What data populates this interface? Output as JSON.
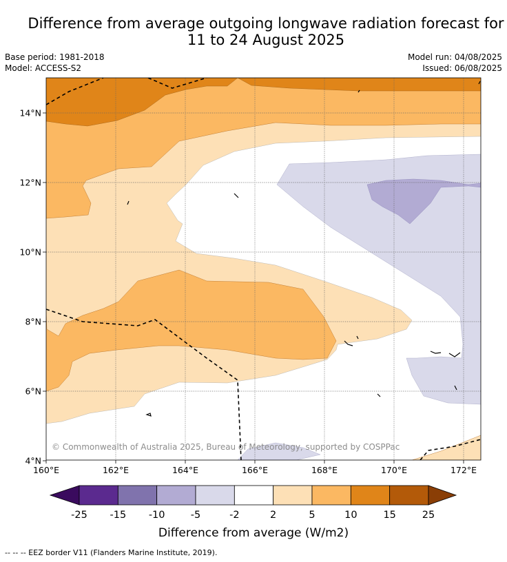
{
  "title": {
    "line1": "Difference from average outgoing longwave radiation forecast for",
    "line2": "11 to 24 August 2025"
  },
  "meta": {
    "base_period": "Base period: 1981-2018",
    "model": "Model: ACCESS-S2",
    "model_run": "Model run: 04/08/2025",
    "issued": "Issued: 06/08/2025"
  },
  "map": {
    "x_ticks": [
      "160°E",
      "162°E",
      "164°E",
      "166°E",
      "168°E",
      "170°E",
      "172°E"
    ],
    "y_ticks": [
      "14°N",
      "12°N",
      "10°N",
      "8°N",
      "6°N",
      "4°N"
    ],
    "copyright": "© Commonwealth of Australia 2025, Bureau of Meteorology, supported by COSPPac"
  },
  "colorbar": {
    "labels": [
      "-25",
      "-15",
      "-10",
      "-5",
      "-2",
      "2",
      "5",
      "10",
      "15",
      "25"
    ],
    "colors": [
      "#5b2a8f",
      "#8073ad",
      "#b2abd3",
      "#d9d9ea",
      "#ffffff",
      "#fde0b6",
      "#fbb862",
      "#e08519",
      "#b35a09"
    ],
    "low_extend_color": "#3a0b5e",
    "high_extend_color": "#8a3e06",
    "label": "Difference from average (W/m2)"
  },
  "footer": {
    "eez_legend": "--  --  -- EEZ border V11 (Flanders Marine Institute, 2019)."
  }
}
